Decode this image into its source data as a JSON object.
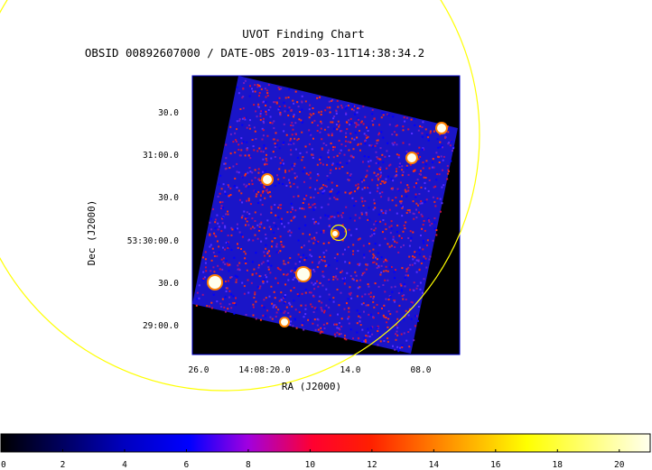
{
  "chart_data": {
    "type": "heatmap",
    "title": "UVOT Finding Chart",
    "subtitle": "OBSID 00892607000 / DATE-OBS 2019-03-11T14:38:34.2",
    "xlabel": "RA (J2000)",
    "ylabel": "Dec (J2000)",
    "x_ticks": [
      "26.0",
      "14:08:20.0",
      "14.0",
      "08.0"
    ],
    "y_ticks": [
      "30.0",
      "31:00.0",
      "30.0",
      "53:30:00.0",
      "30.0",
      "29:00.0"
    ],
    "colorbar": {
      "min": 0,
      "max": 21,
      "ticks": [
        0,
        2,
        4,
        6,
        8,
        10,
        12,
        14,
        16,
        18,
        20
      ],
      "tick_labels": [
        "0",
        "2",
        "4",
        "6",
        "8",
        "10",
        "12",
        "14",
        "16",
        "18",
        "20"
      ]
    },
    "colors": {
      "frame_border": "#0000cc",
      "marker": "#ffff00",
      "background": "#000000"
    }
  }
}
